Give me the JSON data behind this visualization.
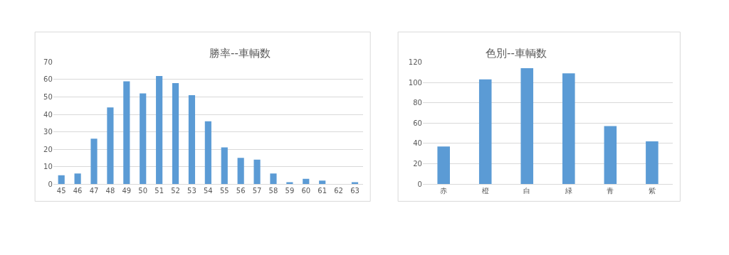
{
  "chart_data": [
    {
      "type": "bar",
      "title": "勝率--車輌数",
      "categories": [
        "45",
        "46",
        "47",
        "48",
        "49",
        "50",
        "51",
        "52",
        "53",
        "54",
        "55",
        "56",
        "57",
        "58",
        "59",
        "60",
        "61",
        "62",
        "63"
      ],
      "values": [
        5,
        6,
        26,
        44,
        59,
        52,
        62,
        58,
        51,
        36,
        21,
        15,
        14,
        6,
        1,
        3,
        2,
        0,
        1
      ],
      "color": "#5b9bd5",
      "ylim": [
        0,
        70
      ],
      "yticks": [
        0,
        10,
        20,
        30,
        40,
        50,
        60,
        70
      ],
      "grid": "y"
    },
    {
      "type": "bar",
      "title": "色別--車輌数",
      "categories": [
        "赤",
        "橙",
        "白",
        "緑",
        "青",
        "紫"
      ],
      "values": [
        37,
        103,
        114,
        109,
        57,
        42
      ],
      "color": "#5b9bd5",
      "ylim": [
        0,
        120
      ],
      "yticks": [
        0,
        20,
        40,
        60,
        80,
        100,
        120
      ],
      "grid": "y"
    }
  ]
}
